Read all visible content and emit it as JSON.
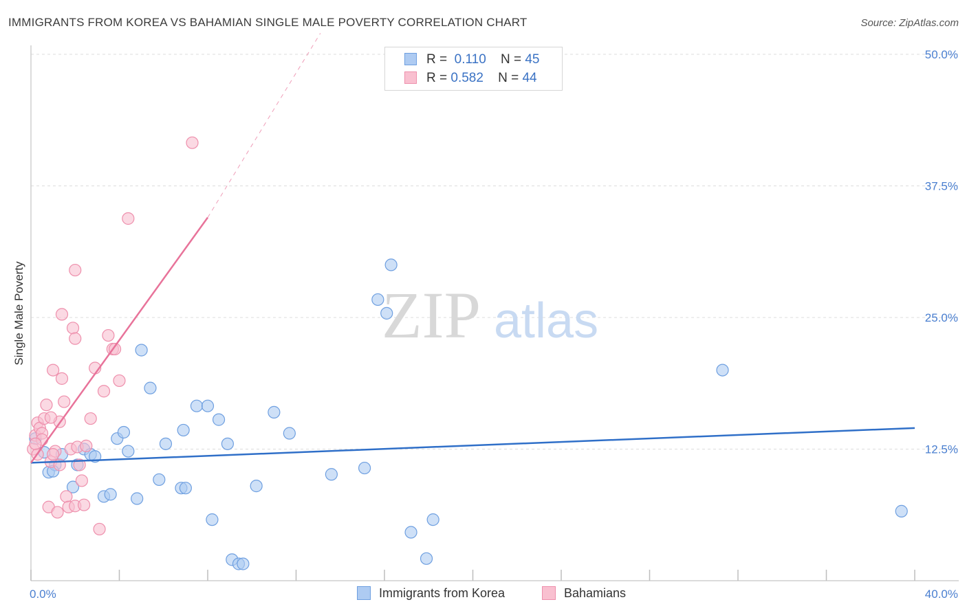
{
  "title": "IMMIGRANTS FROM KOREA VS BAHAMIAN SINGLE MALE POVERTY CORRELATION CHART",
  "source": "Source: ZipAtlas.com",
  "watermark": {
    "zip": "ZIP",
    "atlas": "atlas"
  },
  "legend": {
    "korea": {
      "r_label": "R =",
      "r_value": "0.110",
      "n_label": "N =",
      "n_value": "45"
    },
    "bahamians": {
      "r_label": "R =",
      "r_value": "0.582",
      "n_label": "N =",
      "n_value": "44"
    }
  },
  "bottom_legend": {
    "korea": "Immigrants from Korea",
    "bahamians": "Bahamians"
  },
  "colors": {
    "korea_fill": "#aecbf2",
    "korea_stroke": "#6e9fe0",
    "korea_line": "#2f6fc8",
    "bahamian_fill": "#f9c0d0",
    "bahamian_stroke": "#ee8fac",
    "bahamian_line": "#e8739a",
    "tick_blue": "#4a7fd0",
    "grid": "#dcdcdc"
  },
  "chart_data": {
    "type": "scatter",
    "title": "IMMIGRANTS FROM KOREA VS BAHAMIAN SINGLE MALE POVERTY CORRELATION CHART",
    "xlabel": "",
    "ylabel": "Single Male Poverty",
    "xlim": [
      0,
      40
    ],
    "ylim": [
      0,
      50
    ],
    "x_tick_labels": [
      "0.0%",
      "40.0%"
    ],
    "y_ticks": [
      12.5,
      25.0,
      37.5,
      50.0
    ],
    "y_tick_labels": [
      "12.5%",
      "25.0%",
      "37.5%",
      "50.0%"
    ],
    "grid": true,
    "legend_position": "top-center",
    "series": [
      {
        "name": "Immigrants from Korea",
        "x": [
          0.2,
          0.6,
          0.8,
          1.1,
          1.4,
          1.9,
          2.4,
          2.7,
          2.9,
          3.3,
          3.6,
          3.9,
          4.2,
          4.4,
          4.8,
          5.0,
          5.4,
          5.8,
          6.1,
          6.8,
          6.9,
          7.0,
          7.5,
          8.0,
          8.2,
          8.5,
          8.9,
          9.1,
          9.4,
          9.6,
          10.2,
          11.0,
          11.7,
          13.6,
          15.1,
          15.7,
          16.1,
          16.3,
          17.2,
          17.9,
          18.2,
          31.3,
          39.4,
          1.0,
          2.1
        ],
        "y": [
          13.5,
          12.2,
          10.3,
          11.0,
          12.0,
          8.9,
          12.5,
          12.0,
          11.8,
          8.0,
          8.2,
          13.5,
          14.1,
          12.3,
          7.8,
          21.9,
          18.3,
          9.6,
          13.0,
          8.8,
          14.3,
          8.8,
          16.6,
          16.6,
          5.8,
          15.3,
          13.0,
          2.0,
          1.6,
          1.6,
          9.0,
          16.0,
          14.0,
          10.1,
          10.7,
          26.7,
          25.4,
          30.0,
          4.6,
          2.1,
          5.8,
          20.0,
          6.6,
          10.4,
          11.0
        ]
      },
      {
        "name": "Bahamians",
        "x": [
          0.1,
          0.2,
          0.3,
          0.3,
          0.4,
          0.5,
          0.6,
          0.7,
          0.8,
          0.9,
          1.0,
          1.1,
          1.2,
          1.3,
          1.4,
          1.5,
          1.6,
          1.7,
          1.8,
          1.9,
          2.0,
          2.1,
          2.2,
          2.3,
          2.5,
          2.7,
          2.9,
          3.1,
          3.3,
          3.5,
          3.7,
          4.0,
          4.4,
          7.3,
          1.0,
          0.5,
          1.4,
          0.2,
          0.9,
          2.0,
          2.0,
          1.3,
          2.4,
          3.8
        ],
        "y": [
          12.5,
          13.8,
          15.0,
          12.0,
          14.5,
          14.0,
          15.4,
          16.7,
          7.0,
          11.3,
          20.0,
          12.3,
          6.5,
          15.1,
          19.2,
          17.0,
          8.0,
          7.0,
          12.5,
          24.0,
          23.0,
          12.7,
          11.0,
          9.5,
          12.8,
          15.4,
          20.2,
          4.9,
          18.0,
          23.3,
          22.0,
          19.0,
          34.4,
          41.6,
          12.0,
          13.4,
          25.3,
          13.0,
          15.5,
          29.5,
          7.1,
          11.0,
          7.2,
          22.0
        ]
      }
    ],
    "trendlines": [
      {
        "series": "Immigrants from Korea",
        "x": [
          0,
          40
        ],
        "y": [
          11.2,
          14.5
        ],
        "style": "solid"
      },
      {
        "series": "Bahamians",
        "x": [
          0,
          8.0
        ],
        "y": [
          11.2,
          34.5
        ],
        "style": "solid"
      },
      {
        "series": "Bahamians",
        "x": [
          8.0,
          13.1
        ],
        "y": [
          34.5,
          52.0
        ],
        "style": "dashed"
      }
    ]
  }
}
